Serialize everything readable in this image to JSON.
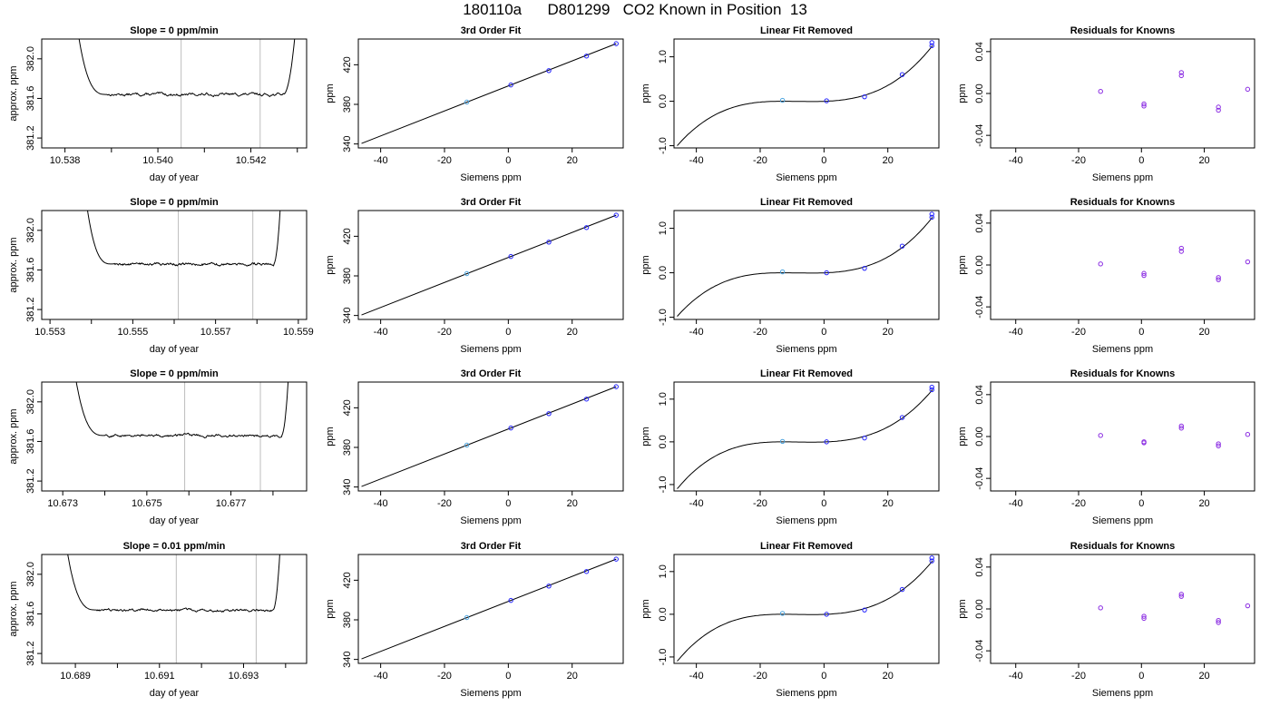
{
  "title": "180110a      D801299   CO2 Known in Position  13",
  "colors": {
    "axis": "#000000",
    "vline": "#bdbdbd",
    "point": "#2222ff",
    "point_alt": "#8a2be2",
    "first_point": "#4aa3df"
  },
  "chart_data": [
    {
      "type": "line",
      "row": 0,
      "col": 0,
      "title": "Slope =  0  ppm/min",
      "xlabel": "day of year",
      "ylabel": "approx. ppm",
      "xlim": [
        10.5375,
        10.5432
      ],
      "ylim": [
        381.1,
        382.2
      ],
      "xticks": [
        10.538,
        10.54,
        10.542
      ],
      "xtick_labels": [
        "10.538",
        "10.540",
        "10.542"
      ],
      "xminor_ticks": [
        10.539,
        10.541,
        10.543
      ],
      "yticks": [
        381.2,
        381.6,
        382.0
      ],
      "ytick_labels": [
        "381.2",
        "381.6",
        "382.0"
      ],
      "vlines": [
        10.5405,
        10.5422
      ],
      "trace": {
        "x_start": 10.5382,
        "x_plateau_start": 10.5389,
        "x_plateau_end": 10.5427,
        "x_end": 10.543,
        "plateau_level": 381.64,
        "edge_level": 382.2
      }
    },
    {
      "type": "scatter",
      "row": 0,
      "col": 1,
      "title": "3rd Order Fit",
      "xlabel": "Siemens ppm",
      "ylabel": "ppm",
      "xlim": [
        -47,
        36
      ],
      "ylim": [
        336,
        446
      ],
      "xticks": [
        -40,
        -20,
        0,
        20
      ],
      "xtick_labels": [
        "-40",
        "-20",
        "0",
        "20"
      ],
      "yticks": [
        340,
        380,
        420
      ],
      "ytick_labels": [
        "340",
        "380",
        "420"
      ],
      "x": [
        -13.0,
        0.8,
        12.7,
        24.5,
        33.8
      ],
      "y": [
        382.3,
        399.6,
        414.1,
        428.8,
        441.3
      ],
      "fit_line": [
        [
          -46.0,
          340.5
        ],
        [
          33.8,
          441.3
        ]
      ]
    },
    {
      "type": "scatter",
      "row": 0,
      "col": 2,
      "title": "Linear Fit Removed",
      "xlabel": "Siemens ppm",
      "ylabel": "ppm",
      "xlim": [
        -47,
        36
      ],
      "ylim": [
        -1.05,
        1.4
      ],
      "xticks": [
        -40,
        -20,
        0,
        20
      ],
      "xtick_labels": [
        "-40",
        "-20",
        "0",
        "20"
      ],
      "yticks": [
        -1.0,
        0.0,
        1.0
      ],
      "ytick_labels": [
        "-1.0",
        "0.0",
        "1.0"
      ],
      "x": [
        -13.0,
        0.8,
        12.7,
        24.5,
        33.8,
        33.8
      ],
      "y": [
        0.02,
        0.01,
        0.1,
        0.6,
        1.32,
        1.25
      ],
      "curve": {
        "x_start": -46,
        "x_end": 34,
        "y_start": -1.0,
        "y_end": 1.25
      }
    },
    {
      "type": "scatter",
      "row": 0,
      "col": 3,
      "title": "Residuals for Knowns",
      "xlabel": "Siemens ppm",
      "ylabel": "ppm",
      "xlim": [
        -48,
        36
      ],
      "ylim": [
        -0.052,
        0.052
      ],
      "xticks": [
        -40,
        -20,
        0,
        20
      ],
      "xtick_labels": [
        "-40",
        "-20",
        "0",
        "20"
      ],
      "yticks": [
        -0.04,
        0.0,
        0.04
      ],
      "ytick_labels": [
        "-0.04",
        "0.00",
        "0.04"
      ],
      "x": [
        -13.0,
        0.8,
        0.8,
        12.7,
        12.7,
        24.5,
        24.5,
        33.8
      ],
      "y": [
        0.002,
        -0.01,
        -0.012,
        0.02,
        0.017,
        -0.013,
        -0.016,
        0.004
      ]
    },
    {
      "type": "line",
      "row": 1,
      "col": 0,
      "title": "Slope =  0  ppm/min",
      "xlabel": "day of year",
      "ylabel": "approx. ppm",
      "xlim": [
        10.5528,
        10.5592
      ],
      "ylim": [
        381.1,
        382.2
      ],
      "xticks": [
        10.553,
        10.555,
        10.557,
        10.559
      ],
      "xtick_labels": [
        "10.553",
        "10.555",
        "10.557",
        "10.559"
      ],
      "xminor_ticks": [
        10.554,
        10.556,
        10.558
      ],
      "yticks": [
        381.2,
        381.6,
        382.0
      ],
      "ytick_labels": [
        "381.2",
        "381.6",
        "382.0"
      ],
      "vlines": [
        10.5561,
        10.5579
      ],
      "trace": {
        "x_start": 10.5538,
        "x_plateau_start": 10.5545,
        "x_plateau_end": 10.5584,
        "x_end": 10.5586,
        "plateau_level": 381.66,
        "edge_level": 382.2
      }
    },
    {
      "type": "scatter",
      "row": 1,
      "col": 1,
      "title": "3rd Order Fit",
      "xlabel": "Siemens ppm",
      "ylabel": "ppm",
      "xlim": [
        -47,
        36
      ],
      "ylim": [
        336,
        446
      ],
      "xticks": [
        -40,
        -20,
        0,
        20
      ],
      "xtick_labels": [
        "-40",
        "-20",
        "0",
        "20"
      ],
      "yticks": [
        340,
        380,
        420
      ],
      "ytick_labels": [
        "340",
        "380",
        "420"
      ],
      "x": [
        -13.0,
        0.8,
        12.7,
        24.5,
        33.8
      ],
      "y": [
        382.3,
        399.6,
        414.1,
        428.8,
        441.3
      ],
      "fit_line": [
        [
          -46.0,
          340.5
        ],
        [
          33.8,
          441.3
        ]
      ]
    },
    {
      "type": "scatter",
      "row": 1,
      "col": 2,
      "title": "Linear Fit Removed",
      "xlabel": "Siemens ppm",
      "ylabel": "ppm",
      "xlim": [
        -47,
        36
      ],
      "ylim": [
        -1.05,
        1.4
      ],
      "xticks": [
        -40,
        -20,
        0,
        20
      ],
      "xtick_labels": [
        "-40",
        "-20",
        "0",
        "20"
      ],
      "yticks": [
        -1.0,
        0.0,
        1.0
      ],
      "ytick_labels": [
        "-1.0",
        "0.0",
        "1.0"
      ],
      "x": [
        -13.0,
        0.8,
        12.7,
        24.5,
        33.8,
        33.8
      ],
      "y": [
        0.02,
        0.0,
        0.1,
        0.6,
        1.32,
        1.25
      ],
      "curve": {
        "x_start": -46,
        "x_end": 34,
        "y_start": -0.98,
        "y_end": 1.25
      }
    },
    {
      "type": "scatter",
      "row": 1,
      "col": 3,
      "title": "Residuals for Knowns",
      "xlabel": "Siemens ppm",
      "ylabel": "ppm",
      "xlim": [
        -48,
        36
      ],
      "ylim": [
        -0.052,
        0.052
      ],
      "xticks": [
        -40,
        -20,
        0,
        20
      ],
      "xtick_labels": [
        "-40",
        "-20",
        "0",
        "20"
      ],
      "yticks": [
        -0.04,
        0.0,
        0.04
      ],
      "ytick_labels": [
        "-0.04",
        "0.00",
        "0.04"
      ],
      "x": [
        -13.0,
        0.8,
        0.8,
        12.7,
        12.7,
        24.5,
        24.5,
        33.8
      ],
      "y": [
        0.001,
        -0.008,
        -0.01,
        0.016,
        0.013,
        -0.012,
        -0.014,
        0.003
      ]
    },
    {
      "type": "line",
      "row": 2,
      "col": 0,
      "title": "Slope =  0  ppm/min",
      "xlabel": "day of year",
      "ylabel": "approx. ppm",
      "xlim": [
        10.6725,
        10.6788
      ],
      "ylim": [
        381.1,
        382.2
      ],
      "xticks": [
        10.673,
        10.675,
        10.677
      ],
      "xtick_labels": [
        "10.673",
        "10.675",
        "10.677"
      ],
      "xminor_ticks": [
        10.674,
        10.676,
        10.678
      ],
      "yticks": [
        381.2,
        381.6,
        382.0
      ],
      "ytick_labels": [
        "381.2",
        "381.6",
        "382.0"
      ],
      "vlines": [
        10.6759,
        10.6777
      ],
      "trace": {
        "x_start": 10.6732,
        "x_plateau_start": 10.674,
        "x_plateau_end": 10.6782,
        "x_end": 10.6784,
        "plateau_level": 381.66,
        "edge_level": 382.2
      }
    },
    {
      "type": "scatter",
      "row": 2,
      "col": 1,
      "title": "3rd Order Fit",
      "xlabel": "Siemens ppm",
      "ylabel": "ppm",
      "xlim": [
        -47,
        36
      ],
      "ylim": [
        336,
        446
      ],
      "xticks": [
        -40,
        -20,
        0,
        20
      ],
      "xtick_labels": [
        "-40",
        "-20",
        "0",
        "20"
      ],
      "yticks": [
        340,
        380,
        420
      ],
      "ytick_labels": [
        "340",
        "380",
        "420"
      ],
      "x": [
        -13.0,
        0.8,
        12.7,
        24.5,
        33.8
      ],
      "y": [
        382.3,
        399.6,
        414.1,
        428.8,
        441.3
      ],
      "fit_line": [
        [
          -46.0,
          340.5
        ],
        [
          33.8,
          441.3
        ]
      ]
    },
    {
      "type": "scatter",
      "row": 2,
      "col": 2,
      "title": "Linear Fit Removed",
      "xlabel": "Siemens ppm",
      "ylabel": "ppm",
      "xlim": [
        -47,
        36
      ],
      "ylim": [
        -1.15,
        1.4
      ],
      "xticks": [
        -40,
        -20,
        0,
        20
      ],
      "xtick_labels": [
        "-40",
        "-20",
        "0",
        "20"
      ],
      "yticks": [
        -1.0,
        0.0,
        1.0
      ],
      "ytick_labels": [
        "-1.0",
        "0.0",
        "1.0"
      ],
      "x": [
        -13.0,
        0.8,
        12.7,
        24.5,
        33.8,
        33.8
      ],
      "y": [
        0.01,
        0.0,
        0.09,
        0.57,
        1.28,
        1.22
      ],
      "curve": {
        "x_start": -46,
        "x_end": 34,
        "y_start": -1.1,
        "y_end": 1.22
      }
    },
    {
      "type": "scatter",
      "row": 2,
      "col": 3,
      "title": "Residuals for Knowns",
      "xlabel": "Siemens ppm",
      "ylabel": "ppm",
      "xlim": [
        -48,
        36
      ],
      "ylim": [
        -0.052,
        0.052
      ],
      "xticks": [
        -40,
        -20,
        0,
        20
      ],
      "xtick_labels": [
        "-40",
        "-20",
        "0",
        "20"
      ],
      "yticks": [
        -0.04,
        0.0,
        0.04
      ],
      "ytick_labels": [
        "-0.04",
        "0.00",
        "0.04"
      ],
      "x": [
        -13.0,
        0.8,
        0.8,
        12.7,
        12.7,
        24.5,
        24.5,
        33.8
      ],
      "y": [
        0.001,
        -0.005,
        -0.006,
        0.01,
        0.008,
        -0.007,
        -0.009,
        0.002
      ]
    },
    {
      "type": "line",
      "row": 3,
      "col": 0,
      "title": "Slope =  0.01  ppm/min",
      "xlabel": "day of year",
      "ylabel": "approx. ppm",
      "xlim": [
        10.6882,
        10.6945
      ],
      "ylim": [
        381.1,
        382.2
      ],
      "xticks": [
        10.689,
        10.691,
        10.693
      ],
      "xtick_labels": [
        "10.689",
        "10.691",
        "10.693"
      ],
      "xminor_ticks": [
        10.69,
        10.692,
        10.694
      ],
      "yticks": [
        381.2,
        381.6,
        382.0
      ],
      "ytick_labels": [
        "381.2",
        "381.6",
        "382.0"
      ],
      "vlines": [
        10.6914,
        10.6933
      ],
      "trace": {
        "x_start": 10.6887,
        "x_plateau_start": 10.6895,
        "x_plateau_end": 10.6937,
        "x_end": 10.6939,
        "plateau_level": 381.64,
        "edge_level": 382.2
      }
    },
    {
      "type": "scatter",
      "row": 3,
      "col": 1,
      "title": "3rd Order Fit",
      "xlabel": "Siemens ppm",
      "ylabel": "ppm",
      "xlim": [
        -47,
        36
      ],
      "ylim": [
        336,
        446
      ],
      "xticks": [
        -40,
        -20,
        0,
        20
      ],
      "xtick_labels": [
        "-40",
        "-20",
        "0",
        "20"
      ],
      "yticks": [
        340,
        380,
        420
      ],
      "ytick_labels": [
        "340",
        "380",
        "420"
      ],
      "x": [
        -13.0,
        0.8,
        12.7,
        24.5,
        33.8
      ],
      "y": [
        382.3,
        399.6,
        414.1,
        428.8,
        441.3
      ],
      "fit_line": [
        [
          -46.0,
          340.5
        ],
        [
          33.8,
          441.3
        ]
      ]
    },
    {
      "type": "scatter",
      "row": 3,
      "col": 2,
      "title": "Linear Fit Removed",
      "xlabel": "Siemens ppm",
      "ylabel": "ppm",
      "xlim": [
        -47,
        36
      ],
      "ylim": [
        -1.15,
        1.4
      ],
      "xticks": [
        -40,
        -20,
        0,
        20
      ],
      "xtick_labels": [
        "-40",
        "-20",
        "0",
        "20"
      ],
      "yticks": [
        -1.0,
        0.0,
        1.0
      ],
      "ytick_labels": [
        "-1.0",
        "0.0",
        "1.0"
      ],
      "x": [
        -13.0,
        0.8,
        12.7,
        24.5,
        33.8,
        33.8
      ],
      "y": [
        0.02,
        0.0,
        0.1,
        0.58,
        1.32,
        1.25
      ],
      "curve": {
        "x_start": -46,
        "x_end": 34,
        "y_start": -1.1,
        "y_end": 1.25
      }
    },
    {
      "type": "scatter",
      "row": 3,
      "col": 3,
      "title": "Residuals for Knowns",
      "xlabel": "Siemens ppm",
      "ylabel": "ppm",
      "xlim": [
        -48,
        36
      ],
      "ylim": [
        -0.052,
        0.052
      ],
      "xticks": [
        -40,
        -20,
        0,
        20
      ],
      "xtick_labels": [
        "-40",
        "-20",
        "0",
        "20"
      ],
      "yticks": [
        -0.04,
        0.0,
        0.04
      ],
      "ytick_labels": [
        "-0.04",
        "0.00",
        "0.04"
      ],
      "x": [
        -13.0,
        0.8,
        0.8,
        12.7,
        12.7,
        24.5,
        24.5,
        33.8
      ],
      "y": [
        0.001,
        -0.007,
        -0.009,
        0.014,
        0.012,
        -0.011,
        -0.013,
        0.003
      ]
    }
  ]
}
